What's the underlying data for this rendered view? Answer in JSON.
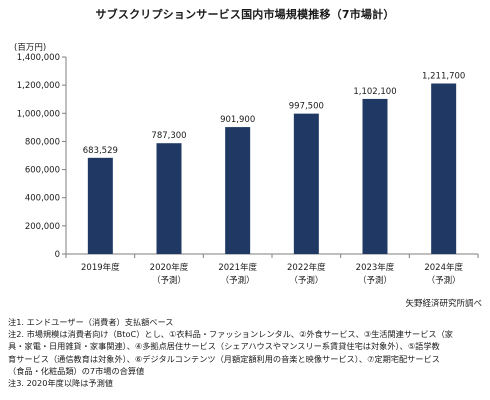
{
  "chart_data": {
    "type": "bar",
    "title": "サブスクリプションサービス国内市場規模推移（7市場計）",
    "ylabel": "(百万円)",
    "xlabel": "",
    "ylim": [
      0,
      1400000
    ],
    "yticks": [
      0,
      200000,
      400000,
      600000,
      800000,
      1000000,
      1200000,
      1400000
    ],
    "ytick_labels": [
      "0",
      "200,000",
      "400,000",
      "600,000",
      "800,000",
      "1,000,000",
      "1,200,000",
      "1,400,000"
    ],
    "categories": [
      {
        "year": "2019年度",
        "sub": ""
      },
      {
        "year": "2020年度",
        "sub": "（予測）"
      },
      {
        "year": "2021年度",
        "sub": "（予測）"
      },
      {
        "year": "2022年度",
        "sub": "（予測）"
      },
      {
        "year": "2023年度",
        "sub": "（予測）"
      },
      {
        "year": "2024年度",
        "sub": "（予測）"
      }
    ],
    "values": [
      683529,
      787300,
      901900,
      997500,
      1102100,
      1211700
    ],
    "value_labels": [
      "683,529",
      "787,300",
      "901,900",
      "997,500",
      "1,102,100",
      "1,211,700"
    ],
    "grid": false,
    "bar_color": "#1f3864",
    "source": "矢野経済研究所調べ"
  },
  "notes": {
    "n1": "注1. エンドユーザー（消費者）支払額ベース",
    "n2a": "注2. 市場規模は消費者向け（BtoC）とし、①衣料品・ファッションレンタル、②外食サービス、③生活関連サービス（家",
    "n2b": "具・家電・日用雑貨・家事関連）、④多拠点居住サービス（シェアハウスやマンスリー系賃貸住宅は対象外）、⑤語学教",
    "n2c": "育サービス（通信教育は対象外）、⑥デジタルコンテンツ（月額定額利用の音楽と映像サービス）、⑦定期宅配サービス",
    "n2d": "（食品・化粧品類）の7市場の合算値",
    "n3": "注3. 2020年度以降は予測値"
  }
}
